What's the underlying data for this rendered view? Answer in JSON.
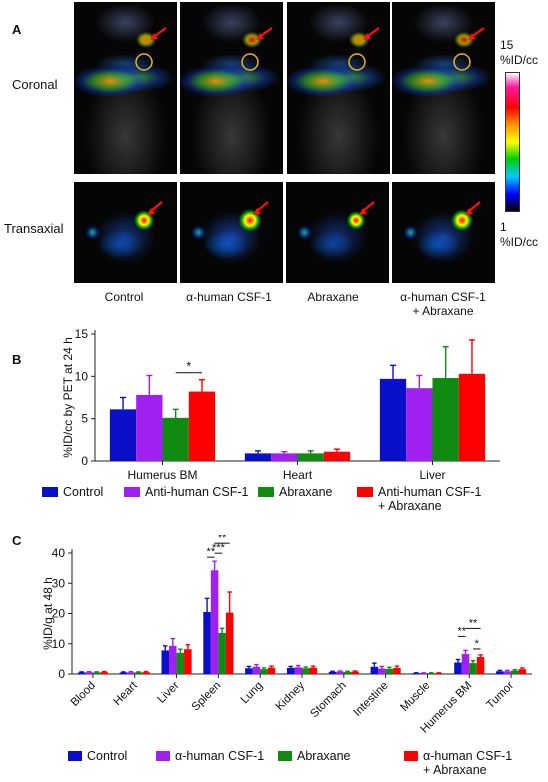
{
  "figure": {
    "panel_a": {
      "letter": "A",
      "row_labels": [
        "Coronal",
        "Transaxial"
      ],
      "column_labels": [
        "Control",
        "α-human CSF-1",
        "Abraxane",
        "α-human CSF-1\n+ Abraxane"
      ],
      "colorbar": {
        "max_label": "15\n%ID/cc",
        "min_label": "1\n%ID/cc"
      }
    },
    "panel_b": {
      "letter": "B"
    },
    "panel_c": {
      "letter": "C"
    }
  },
  "chart_data": [
    {
      "type": "bar",
      "panel": "B",
      "categories": [
        "Humerus BM",
        "Heart",
        "Liver"
      ],
      "ylabel": "%ID/cc by PET at 24 h",
      "ylim": [
        0,
        15
      ],
      "yticks": [
        0,
        5,
        10,
        15
      ],
      "series": [
        {
          "name": "Control",
          "color": "#0a10c8",
          "values": [
            6.1,
            0.9,
            9.7
          ],
          "errors": [
            1.4,
            0.3,
            1.6
          ]
        },
        {
          "name": "Anti-human CSF-1",
          "color": "#a020f0",
          "values": [
            7.8,
            0.9,
            8.6
          ],
          "errors": [
            2.3,
            0.2,
            1.5
          ]
        },
        {
          "name": "Abraxane",
          "color": "#108a10",
          "values": [
            5.1,
            0.9,
            9.8
          ],
          "errors": [
            1.0,
            0.3,
            3.7
          ]
        },
        {
          "name": "Anti-human CSF-1\n+ Abraxane",
          "color": "#ff0000",
          "values": [
            8.2,
            1.1,
            10.3
          ],
          "errors": [
            1.4,
            0.3,
            4.0
          ]
        }
      ],
      "annotations": [
        {
          "text": "*",
          "category": "Humerus BM",
          "between": [
            "Abraxane",
            "Anti-human CSF-1\n+ Abraxane"
          ]
        }
      ]
    },
    {
      "type": "bar",
      "panel": "C",
      "categories": [
        "Blood",
        "Heart",
        "Liver",
        "Spleen",
        "Lung",
        "Kidney",
        "Stomach",
        "Intestine",
        "Muscle",
        "Humerus BM",
        "Tumor"
      ],
      "ylabel": "%ID/g at 48 h",
      "ylim": [
        0,
        40
      ],
      "yticks": [
        0,
        10,
        20,
        30,
        40
      ],
      "series": [
        {
          "name": "Control",
          "color": "#0a10c8",
          "values": [
            0.5,
            0.5,
            7.8,
            20.5,
            1.9,
            2.0,
            0.7,
            2.4,
            0.3,
            3.8,
            0.9
          ],
          "errors": [
            0.2,
            0.2,
            1.5,
            4.5,
            0.6,
            0.5,
            0.2,
            1.2,
            0.1,
            1.0,
            0.3
          ]
        },
        {
          "name": "α-human CSF-1",
          "color": "#a020f0",
          "values": [
            0.6,
            0.6,
            9.3,
            34.3,
            2.4,
            2.2,
            0.8,
            1.8,
            0.3,
            6.6,
            0.9
          ],
          "errors": [
            0.2,
            0.2,
            2.4,
            3.0,
            0.7,
            0.6,
            0.2,
            0.7,
            0.1,
            1.2,
            0.3
          ]
        },
        {
          "name": "Abraxane",
          "color": "#108a10",
          "values": [
            0.5,
            0.5,
            7.0,
            13.6,
            1.6,
            1.9,
            0.7,
            1.7,
            0.3,
            3.6,
            1.1
          ],
          "errors": [
            0.2,
            0.2,
            1.2,
            1.5,
            0.4,
            0.4,
            0.2,
            0.5,
            0.1,
            0.8,
            0.3
          ]
        },
        {
          "name": "α-human CSF-1\n+ Abraxane",
          "color": "#ff0000",
          "values": [
            0.6,
            0.6,
            8.2,
            20.3,
            2.1,
            2.1,
            0.8,
            2.0,
            0.3,
            5.6,
            1.6
          ],
          "errors": [
            0.2,
            0.2,
            1.5,
            6.8,
            0.5,
            0.5,
            0.2,
            0.6,
            0.1,
            0.7,
            0.4
          ]
        }
      ],
      "annotations": [
        {
          "text": "**",
          "category": "Spleen",
          "between": [
            "Control",
            "α-human CSF-1"
          ]
        },
        {
          "text": "**",
          "category": "Spleen",
          "between": [
            "α-human CSF-1",
            "α-human CSF-1\n+ Abraxane"
          ]
        },
        {
          "text": "***",
          "category": "Spleen",
          "between": [
            "α-human CSF-1",
            "Abraxane"
          ]
        },
        {
          "text": "**",
          "category": "Humerus BM",
          "between": [
            "Control",
            "α-human CSF-1"
          ]
        },
        {
          "text": "**",
          "category": "Humerus BM",
          "between": [
            "α-human CSF-1",
            "α-human CSF-1\n+ Abraxane"
          ]
        },
        {
          "text": "*",
          "category": "Humerus BM",
          "between": [
            "Abraxane",
            "α-human CSF-1\n+ Abraxane"
          ]
        }
      ]
    }
  ]
}
